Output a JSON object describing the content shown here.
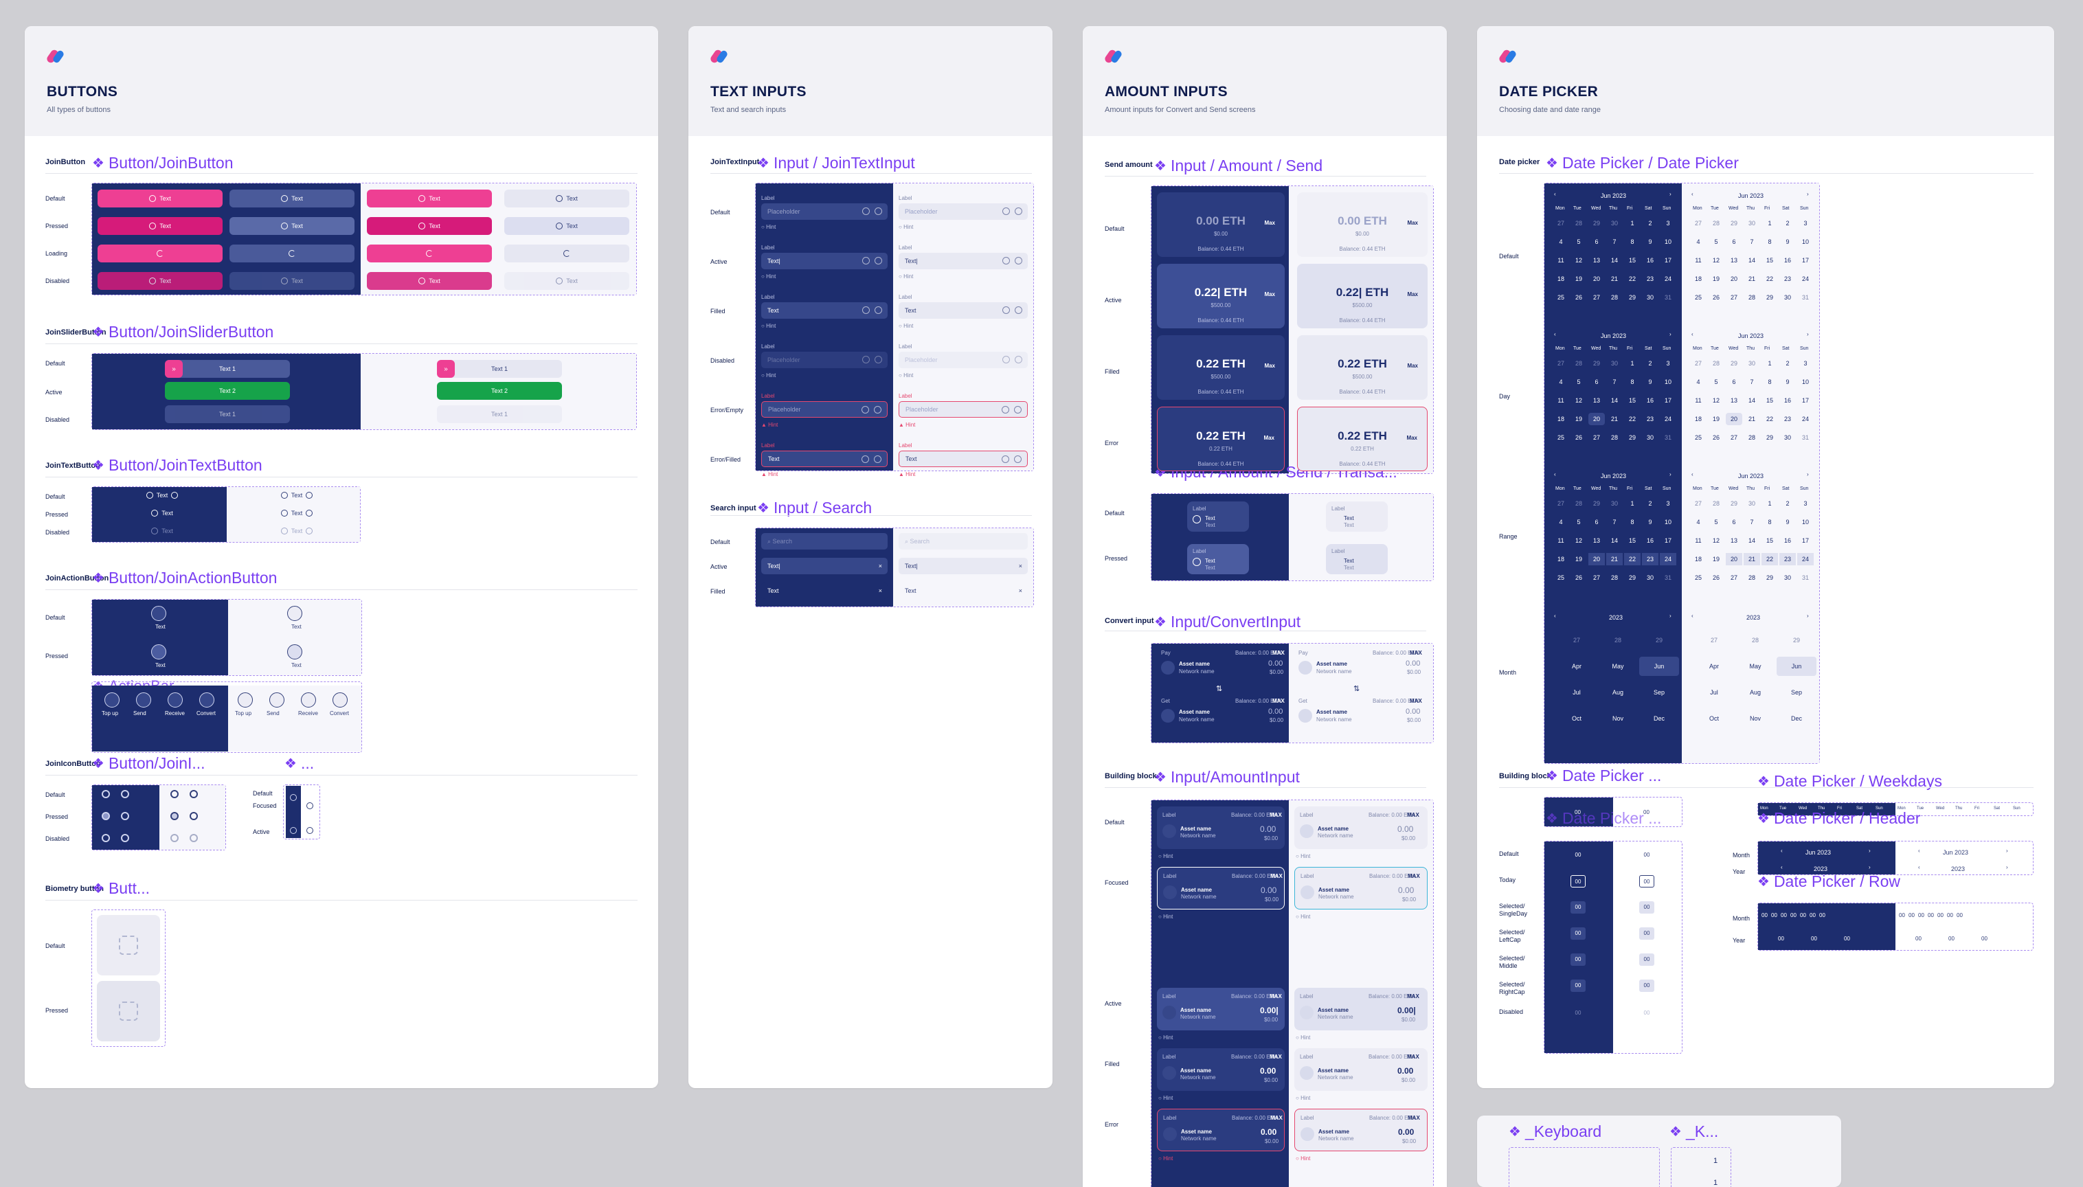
{
  "colors": {
    "primary": "#1d2d6e",
    "accent": "#ee3f93",
    "purple": "#7a3ff2",
    "success": "#16a34a",
    "error": "#e5486f"
  },
  "buttons": {
    "title": "BUTTONS",
    "subtitle": "All types of buttons",
    "join": {
      "label": "JoinButton",
      "component": "Button/JoinButton",
      "states": [
        "Default",
        "Pressed",
        "Loading",
        "Disabled"
      ],
      "btn": "Text"
    },
    "slider": {
      "label": "JoinSliderButton",
      "component": "Button/JoinSliderButton",
      "states": [
        "Default",
        "Active",
        "Disabled"
      ],
      "t1": "Text 1",
      "t2": "Text 2"
    },
    "textbtn": {
      "label": "JoinTextButton",
      "component": "Button/JoinTextButton",
      "states": [
        "Default",
        "Pressed",
        "Disabled"
      ],
      "btn": "Text"
    },
    "action": {
      "label": "JoinActionButton",
      "component": "Button/JoinActionButton",
      "states": [
        "Default",
        "Pressed"
      ],
      "btn": "Text",
      "bar": "ActionBar",
      "items": [
        "Top up",
        "Send",
        "Receive",
        "Convert"
      ]
    },
    "icon": {
      "label": "JoinIconButton",
      "component": "Button/JoinI...",
      "more": "...",
      "states": [
        "Default",
        "Pressed",
        "Disabled"
      ],
      "states2": [
        "Default",
        "Focused",
        "Active"
      ]
    },
    "bio": {
      "label": "Biometry button",
      "component": "Butt...",
      "states": [
        "Default",
        "Pressed"
      ]
    }
  },
  "textinputs": {
    "title": "TEXT INPUTS",
    "subtitle": "Text and search inputs",
    "join": {
      "label": "JoinTextInput",
      "component": "Input / JoinTextInput",
      "states": [
        "Default",
        "Active",
        "Filled",
        "Disabled",
        "Error/Empty",
        "Error/Filled"
      ],
      "field_label": "Label",
      "placeholder": "Placeholder",
      "text": "Text",
      "active_text": "Text|",
      "hint": "Hint"
    },
    "search": {
      "label": "Search input",
      "component": "Input / Search",
      "states": [
        "Default",
        "Active",
        "Filled"
      ],
      "placeholder": "Search",
      "active": "Text|",
      "filled": "Text"
    }
  },
  "amount": {
    "title": "AMOUNT INPUTS",
    "subtitle": "Amount inputs for Convert and Send screens",
    "send": {
      "label": "Send amount",
      "component": "Input / Amount / Send",
      "states": [
        "Default",
        "Active",
        "Filled",
        "Error"
      ],
      "values": [
        "0.00 ETH",
        "0.22| ETH",
        "0.22 ETH",
        "0.22 ETH"
      ],
      "fiat": [
        "$0.00",
        "$500.00",
        "$500.00",
        "0.22 ETH"
      ],
      "max": "Max",
      "balance": "Balance: 0.44 ETH"
    },
    "trans": {
      "component": "Input / Amount / Send / Transa...",
      "states": [
        "Default",
        "Pressed"
      ],
      "label": "Label",
      "text": "Text"
    },
    "convert": {
      "label": "Convert input",
      "component": "Input/ConvertInput",
      "pay": "Pay",
      "get": "Get",
      "balance": "Balance: 0.00 ETH",
      "max": "MAX",
      "asset": "Asset name",
      "network": "Network name",
      "amount": "0.00",
      "fiat": "$0.00"
    },
    "building": {
      "label": "Building block",
      "component": "Input/AmountInput",
      "states": [
        "Default",
        "Focused",
        "Active",
        "Filled",
        "Error"
      ],
      "field_label": "Label",
      "balance": "Balance: 0.00 ETH",
      "max": "MAX",
      "asset": "Asset name",
      "network": "Network name",
      "amount": "0.00",
      "fiat": "$0.00",
      "hint": "Hint",
      "active_amount": "0.00|"
    }
  },
  "datepicker": {
    "title": "DATE PICKER",
    "subtitle": "Choosing date and date range",
    "picker": {
      "label": "Date picker",
      "component": "Date Picker / Date Picker",
      "states": [
        "Default",
        "Day",
        "Range",
        "Month"
      ],
      "month": "Jun 2023",
      "year": "2023",
      "weekdays": [
        "Mon",
        "Tue",
        "Wed",
        "Thu",
        "Fri",
        "Sat",
        "Sun"
      ],
      "days": [
        "27",
        "28",
        "29",
        "30",
        "1",
        "2",
        "3",
        "4",
        "5",
        "6",
        "7",
        "8",
        "9",
        "10",
        "11",
        "12",
        "13",
        "14",
        "15",
        "16",
        "17",
        "18",
        "19",
        "20",
        "21",
        "22",
        "23",
        "24",
        "25",
        "26",
        "27",
        "28",
        "29",
        "30",
        "31"
      ],
      "months": [
        "27",
        "28",
        "29",
        "Apr",
        "May",
        "Jun",
        "Jul",
        "Aug",
        "Sep",
        "Oct",
        "Nov",
        "Dec"
      ]
    },
    "building": {
      "label": "Building block",
      "component": "Date Picker ...",
      "component2": "Date Picker ...",
      "weekdays_c": "Date Picker / Weekdays",
      "header_c": "Date Picker / Header",
      "row_c": "Date Picker / Row",
      "states": [
        "Default",
        "Today",
        "Selected/ SingleDay",
        "Selected/ LeftCap",
        "Selected/ Middle",
        "Selected/ RightCap",
        "Disabled"
      ],
      "cell": "00",
      "mlabel": "Month",
      "ylabel": "Year",
      "hmonth": "Jun 2023",
      "hyear": "2023"
    }
  },
  "keyboard": {
    "c1": "_Keyboard",
    "c2": "_K...",
    "key": "1"
  }
}
